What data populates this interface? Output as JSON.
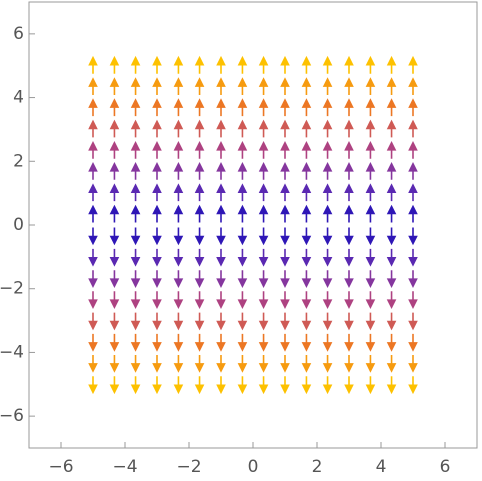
{
  "chart_data": {
    "type": "vector",
    "xlim": [
      -7,
      7
    ],
    "ylim": [
      -7,
      7
    ],
    "xticks": [
      {
        "value": -6,
        "label": "−6"
      },
      {
        "value": -4,
        "label": "−4"
      },
      {
        "value": -2,
        "label": "−2"
      },
      0,
      2,
      4,
      6
    ],
    "yticks": [
      {
        "value": -6,
        "label": "−6"
      },
      {
        "value": -4,
        "label": "−4"
      },
      {
        "value": -2,
        "label": "−2"
      },
      0,
      2,
      4,
      6
    ],
    "x": [
      -5,
      -4.33,
      -3.67,
      -3,
      -2.33,
      -1.67,
      -1,
      -0.33,
      0.33,
      1,
      1.67,
      2.33,
      3,
      3.67,
      4.33,
      5
    ],
    "y": [
      -5,
      -4.33,
      -3.67,
      -3,
      -2.33,
      -1.67,
      -1,
      -0.33,
      0.33,
      1,
      1.67,
      2.33,
      3,
      3.67,
      4.33,
      5
    ],
    "v": [
      -5,
      -4.33,
      -3.67,
      -3,
      -2.33,
      -1.67,
      -1,
      -0.33,
      0.33,
      1,
      1.67,
      2.33,
      3,
      3.67,
      4.33,
      5
    ],
    "colors": [
      "#1a0fb8",
      "#6a2fb0",
      "#b9457a",
      "#f07a1e",
      "#fdc100"
    ]
  }
}
